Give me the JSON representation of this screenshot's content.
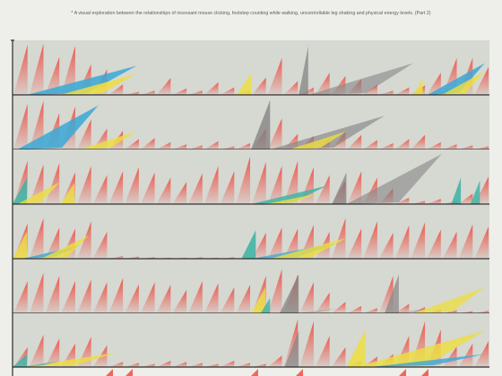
{
  "caption": "* A visual exploration between the relationships of incessant mouse clicking, footstep counting while walking, uncontrollable leg shaking and physical energy levels. (Part 2)",
  "colors": {
    "page_bg": "#eeefea",
    "panel_bg": "#d6d8d2",
    "baseline": "#2b2b2b",
    "red": "#ee4f43",
    "blue": "#3aa8d6",
    "yellow": "#ecdf3f",
    "gray": "#7f7f7f",
    "teal": "#39b3a3"
  },
  "rows": [
    {
      "red": [
        0.95,
        0.97,
        0.72,
        0.93,
        0.58,
        0.48,
        0.2,
        0.06,
        0.08,
        0.32,
        0.12,
        0.08,
        0.24,
        0.14,
        0.09,
        0.33,
        0.7,
        0.26,
        0.14,
        0.42,
        0.36,
        0.3,
        0.2,
        0.08,
        0.14,
        0.18,
        0.42,
        0.7,
        0.7,
        0.53
      ],
      "overlays": [
        {
          "color": "blue",
          "type": "wedge",
          "x0": 0.03,
          "x1": 0.26,
          "h0": 0.28,
          "h1": 0.55,
          "opacity": 0.85
        },
        {
          "color": "yellow",
          "type": "wedge",
          "x0": 0.1,
          "x1": 0.26,
          "h0": 0.08,
          "h1": 0.4,
          "opacity": 0.85
        },
        {
          "color": "gray",
          "type": "spike",
          "x0": 0.6,
          "x1": 0.62,
          "h0": 0.0,
          "h1": 0.92,
          "opacity": 0.7
        },
        {
          "color": "gray",
          "type": "wedge",
          "x0": 0.62,
          "x1": 0.84,
          "h0": 0.1,
          "h1": 0.6,
          "opacity": 0.55
        },
        {
          "color": "yellow",
          "type": "spike",
          "x0": 0.47,
          "x1": 0.5,
          "h0": 0.0,
          "h1": 0.4,
          "opacity": 0.85
        },
        {
          "color": "yellow",
          "type": "spike",
          "x0": 0.84,
          "x1": 0.86,
          "h0": 0.0,
          "h1": 0.3,
          "opacity": 0.85
        },
        {
          "color": "blue",
          "type": "wedge",
          "x0": 0.87,
          "x1": 0.99,
          "h0": 0.1,
          "h1": 0.6,
          "opacity": 0.85
        },
        {
          "color": "yellow",
          "type": "wedge",
          "x0": 0.9,
          "x1": 0.99,
          "h0": 0.05,
          "h1": 0.45,
          "opacity": 0.8
        }
      ]
    },
    {
      "red": [
        0.88,
        0.94,
        0.7,
        0.83,
        0.58,
        0.4,
        0.36,
        0.2,
        0.22,
        0.14,
        0.1,
        0.08,
        0.16,
        0.06,
        0.12,
        0.4,
        0.6,
        0.3,
        0.26,
        0.22,
        0.36,
        0.28,
        0.18,
        0.12,
        0.2,
        0.28,
        0.14,
        0.1,
        0.08,
        0.06
      ],
      "overlays": [
        {
          "color": "blue",
          "type": "wedge",
          "x0": 0.01,
          "x1": 0.18,
          "h0": 0.05,
          "h1": 0.85,
          "opacity": 0.85
        },
        {
          "color": "yellow",
          "type": "wedge",
          "x0": 0.14,
          "x1": 0.26,
          "h0": 0.05,
          "h1": 0.35,
          "opacity": 0.8
        },
        {
          "color": "gray",
          "type": "spike",
          "x0": 0.5,
          "x1": 0.54,
          "h0": 0.0,
          "h1": 0.95,
          "opacity": 0.75
        },
        {
          "color": "gray",
          "type": "wedge",
          "x0": 0.54,
          "x1": 0.78,
          "h0": 0.1,
          "h1": 0.65,
          "opacity": 0.6
        },
        {
          "color": "yellow",
          "type": "wedge",
          "x0": 0.58,
          "x1": 0.7,
          "h0": 0.05,
          "h1": 0.35,
          "opacity": 0.8
        }
      ]
    },
    {
      "red": [
        0.82,
        0.75,
        0.78,
        0.6,
        0.72,
        0.55,
        0.62,
        0.7,
        0.6,
        0.5,
        0.42,
        0.58,
        0.72,
        0.62,
        0.9,
        0.8,
        0.72,
        0.82,
        0.7,
        0.55,
        0.45,
        0.62,
        0.5,
        0.3,
        0.12,
        0.06,
        0.1,
        0.06,
        0.2,
        0.52
      ],
      "overlays": [
        {
          "color": "teal",
          "type": "spike",
          "x0": 0.0,
          "x1": 0.03,
          "h0": 0.0,
          "h1": 0.5,
          "opacity": 0.85
        },
        {
          "color": "yellow",
          "type": "wedge",
          "x0": 0.01,
          "x1": 0.1,
          "h0": 0.05,
          "h1": 0.42,
          "opacity": 0.8
        },
        {
          "color": "yellow",
          "type": "spike",
          "x0": 0.1,
          "x1": 0.13,
          "h0": 0.0,
          "h1": 0.4,
          "opacity": 0.8
        },
        {
          "color": "teal",
          "type": "wedge",
          "x0": 0.5,
          "x1": 0.66,
          "h0": 0.05,
          "h1": 0.35,
          "opacity": 0.8
        },
        {
          "color": "yellow",
          "type": "wedge",
          "x0": 0.53,
          "x1": 0.64,
          "h0": 0.05,
          "h1": 0.2,
          "opacity": 0.8
        },
        {
          "color": "gray",
          "type": "spike",
          "x0": 0.67,
          "x1": 0.7,
          "h0": 0.0,
          "h1": 0.6,
          "opacity": 0.7
        },
        {
          "color": "gray",
          "type": "wedge",
          "x0": 0.7,
          "x1": 0.9,
          "h0": 0.1,
          "h1": 0.95,
          "opacity": 0.55
        },
        {
          "color": "teal",
          "type": "spike",
          "x0": 0.92,
          "x1": 0.94,
          "h0": 0.0,
          "h1": 0.5,
          "opacity": 0.85
        },
        {
          "color": "teal",
          "type": "spike",
          "x0": 0.96,
          "x1": 0.98,
          "h0": 0.0,
          "h1": 0.45,
          "opacity": 0.8
        }
      ]
    },
    {
      "red": [
        0.68,
        0.78,
        0.6,
        0.58,
        0.72,
        0.52,
        0.05,
        0.04,
        0.03,
        0.02,
        0.02,
        0.03,
        0.02,
        0.03,
        0.02,
        0.5,
        0.6,
        0.58,
        0.65,
        0.52,
        0.78,
        0.58,
        0.72,
        0.5,
        0.64,
        0.7,
        0.56,
        0.52,
        0.66,
        0.62
      ],
      "overlays": [
        {
          "color": "yellow",
          "type": "spike",
          "x0": 0.0,
          "x1": 0.03,
          "h0": 0.0,
          "h1": 0.52,
          "opacity": 0.8
        },
        {
          "color": "blue",
          "type": "wedge",
          "x0": 0.02,
          "x1": 0.14,
          "h0": 0.05,
          "h1": 0.25,
          "opacity": 0.8
        },
        {
          "color": "yellow",
          "type": "wedge",
          "x0": 0.06,
          "x1": 0.16,
          "h0": 0.05,
          "h1": 0.45,
          "opacity": 0.8
        },
        {
          "color": "teal",
          "type": "spike",
          "x0": 0.48,
          "x1": 0.51,
          "h0": 0.0,
          "h1": 0.55,
          "opacity": 0.85
        },
        {
          "color": "blue",
          "type": "wedge",
          "x0": 0.5,
          "x1": 0.68,
          "h0": 0.05,
          "h1": 0.3,
          "opacity": 0.75
        },
        {
          "color": "yellow",
          "type": "wedge",
          "x0": 0.54,
          "x1": 0.7,
          "h0": 0.05,
          "h1": 0.4,
          "opacity": 0.8
        }
      ]
    },
    {
      "red": [
        0.62,
        0.78,
        0.72,
        0.62,
        0.65,
        0.6,
        0.68,
        0.56,
        0.6,
        0.55,
        0.45,
        0.62,
        0.58,
        0.5,
        0.55,
        0.72,
        0.85,
        0.75,
        0.6,
        0.4,
        0.22,
        0.14,
        0.1,
        0.72,
        0.18,
        0.12,
        0.08,
        0.06,
        0.04,
        0.05
      ],
      "overlays": [
        {
          "color": "yellow",
          "type": "spike",
          "x0": 0.5,
          "x1": 0.53,
          "h0": 0.0,
          "h1": 0.5,
          "opacity": 0.8
        },
        {
          "color": "teal",
          "type": "spike",
          "x0": 0.52,
          "x1": 0.54,
          "h0": 0.0,
          "h1": 0.3,
          "opacity": 0.8
        },
        {
          "color": "gray",
          "type": "spike",
          "x0": 0.56,
          "x1": 0.6,
          "h0": 0.0,
          "h1": 0.75,
          "opacity": 0.7
        },
        {
          "color": "gray",
          "type": "wedge",
          "x0": 0.6,
          "x1": 0.68,
          "h0": 0.02,
          "h1": 0.1,
          "opacity": 0.5
        },
        {
          "color": "gray",
          "type": "spike",
          "x0": 0.78,
          "x1": 0.81,
          "h0": 0.0,
          "h1": 0.75,
          "opacity": 0.65
        },
        {
          "color": "gray",
          "type": "wedge",
          "x0": 0.8,
          "x1": 0.88,
          "h0": 0.02,
          "h1": 0.1,
          "opacity": 0.5
        },
        {
          "color": "yellow",
          "type": "wedge",
          "x0": 0.84,
          "x1": 0.99,
          "h0": 0.05,
          "h1": 0.5,
          "opacity": 0.75
        }
      ]
    },
    {
      "red": [
        0.38,
        0.62,
        0.55,
        0.45,
        0.58,
        0.42,
        0.1,
        0.08,
        0.06,
        0.12,
        0.1,
        0.08,
        0.06,
        0.12,
        0.08,
        0.06,
        0.22,
        0.92,
        0.88,
        0.6,
        0.38,
        0.12,
        0.2,
        0.25,
        0.6,
        0.88,
        0.72,
        0.4,
        0.45,
        0.5
      ],
      "overlays": [
        {
          "color": "teal",
          "type": "spike",
          "x0": 0.0,
          "x1": 0.03,
          "h0": 0.0,
          "h1": 0.25,
          "opacity": 0.8
        },
        {
          "color": "yellow",
          "type": "wedge",
          "x0": 0.02,
          "x1": 0.22,
          "h0": 0.05,
          "h1": 0.28,
          "opacity": 0.8
        },
        {
          "color": "blue",
          "type": "wedge",
          "x0": 0.02,
          "x1": 0.1,
          "h0": 0.05,
          "h1": 0.12,
          "opacity": 0.75
        },
        {
          "color": "gray",
          "type": "spike",
          "x0": 0.57,
          "x1": 0.6,
          "h0": 0.0,
          "h1": 0.7,
          "opacity": 0.65
        },
        {
          "color": "yellow",
          "type": "spike",
          "x0": 0.7,
          "x1": 0.74,
          "h0": 0.0,
          "h1": 0.72,
          "opacity": 0.85
        },
        {
          "color": "yellow",
          "type": "wedge",
          "x0": 0.72,
          "x1": 0.99,
          "h0": 0.05,
          "h1": 0.7,
          "opacity": 0.8
        },
        {
          "color": "blue",
          "type": "wedge",
          "x0": 0.75,
          "x1": 0.99,
          "h0": 0.02,
          "h1": 0.25,
          "opacity": 0.8
        }
      ]
    }
  ]
}
